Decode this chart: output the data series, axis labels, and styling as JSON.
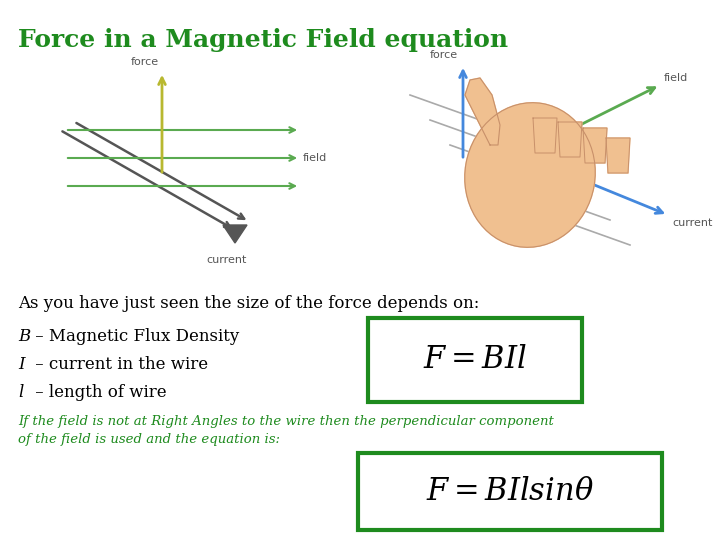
{
  "title": "Force in a Magnetic Field equation",
  "title_color": "#1e8b1e",
  "title_fontsize": 18,
  "bg_color": "#ffffff",
  "body_text_1": "As you have just seen the size of the force depends on:",
  "body_text_1_color": "#000000",
  "body_text_1_fontsize": 12,
  "bullet_lines": [
    "B – Magnetic Flux Density",
    "I – current in the wire",
    "l – length of wire"
  ],
  "bullet_color": "#000000",
  "bullet_fontsize": 12,
  "equation1": "$F = BIl$",
  "equation2": "$F = BIlsin\\theta$",
  "eq_fontsize": 22,
  "eq_color": "#000000",
  "eq_box_color": "#1e8b1e",
  "small_text_line1": "If the field is not at Right Angles to the wire then the perpendicular component",
  "small_text_line2": "of the field is used and the equation is:",
  "small_text_color": "#1e8b1e",
  "small_text_fontsize": 9.5,
  "arrow_green": "#5aaa50",
  "arrow_yellow": "#b8b830",
  "wire_color": "#555555",
  "label_color": "#555555"
}
